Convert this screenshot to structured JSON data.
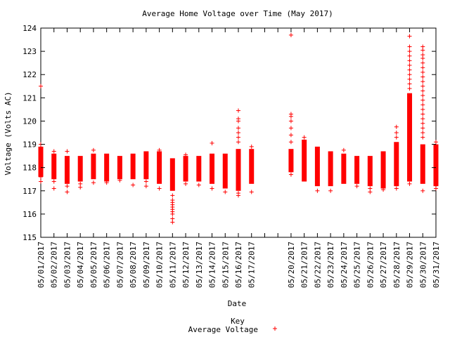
{
  "chart_data": {
    "type": "scatter",
    "title": "Average Home Voltage over Time (May 2017)",
    "xlabel": "Date",
    "ylabel": "Voltage (Volts AC)",
    "ylim": [
      115,
      124
    ],
    "yticks": [
      115,
      116,
      117,
      118,
      119,
      120,
      121,
      122,
      123,
      124
    ],
    "categories": [
      "05/01/2017",
      "05/02/2017",
      "05/03/2017",
      "05/04/2017",
      "05/05/2017",
      "05/06/2017",
      "05/07/2017",
      "05/08/2017",
      "05/09/2017",
      "05/10/2017",
      "05/11/2017",
      "05/12/2017",
      "05/13/2017",
      "05/14/2017",
      "05/15/2017",
      "05/16/2017",
      "05/17/2017",
      "05/18/2017",
      "05/19/2017",
      "05/20/2017",
      "05/21/2017",
      "05/22/2017",
      "05/23/2017",
      "05/24/2017",
      "05/25/2017",
      "05/26/2017",
      "05/27/2017",
      "05/28/2017",
      "05/29/2017",
      "05/30/2017",
      "05/31/2017"
    ],
    "xlim": [
      "05/01/2017",
      "05/31/2017"
    ],
    "grid": false,
    "legend_position": "bottom",
    "legend_title": "Key",
    "series": [
      {
        "name": "Average Voltage",
        "color": "#ff0000",
        "marker": "plus",
        "daily": [
          {
            "date": "05/01/2017",
            "low": 117.6,
            "high": 118.9,
            "outliers": [
              121.5,
              119.0,
              117.4,
              117.6
            ]
          },
          {
            "date": "05/02/2017",
            "low": 117.5,
            "high": 118.6,
            "outliers": [
              118.7,
              117.1,
              117.4
            ]
          },
          {
            "date": "05/03/2017",
            "low": 117.3,
            "high": 118.5,
            "outliers": [
              118.7,
              116.95,
              117.2
            ]
          },
          {
            "date": "05/04/2017",
            "low": 117.4,
            "high": 118.5,
            "outliers": [
              117.15,
              117.3
            ]
          },
          {
            "date": "05/05/2017",
            "low": 117.5,
            "high": 118.6,
            "outliers": [
              118.75,
              117.35
            ]
          },
          {
            "date": "05/06/2017",
            "low": 117.4,
            "high": 118.6,
            "outliers": [
              117.35
            ]
          },
          {
            "date": "05/07/2017",
            "low": 117.5,
            "high": 118.5,
            "outliers": [
              117.45
            ]
          },
          {
            "date": "05/08/2017",
            "low": 117.5,
            "high": 118.6,
            "outliers": [
              117.25
            ]
          },
          {
            "date": "05/09/2017",
            "low": 117.5,
            "high": 118.7,
            "outliers": [
              117.2,
              117.4
            ]
          },
          {
            "date": "05/10/2017",
            "low": 117.3,
            "high": 118.7,
            "outliers": [
              118.75,
              117.1
            ]
          },
          {
            "date": "05/11/2017",
            "low": 117.0,
            "high": 118.4,
            "outliers": [
              116.8,
              116.6,
              116.4,
              116.2,
              116.0,
              115.8,
              115.65,
              116.5,
              116.3,
              116.1
            ]
          },
          {
            "date": "05/12/2017",
            "low": 117.4,
            "high": 118.5,
            "outliers": [
              118.55,
              117.3
            ]
          },
          {
            "date": "05/13/2017",
            "low": 117.4,
            "high": 118.5,
            "outliers": [
              117.25
            ]
          },
          {
            "date": "05/14/2017",
            "low": 117.3,
            "high": 118.6,
            "outliers": [
              119.05,
              117.1
            ]
          },
          {
            "date": "05/15/2017",
            "low": 117.1,
            "high": 118.6,
            "outliers": [
              116.95
            ]
          },
          {
            "date": "05/16/2017",
            "low": 117.0,
            "high": 118.8,
            "outliers": [
              120.45,
              120.1,
              120.0,
              119.7,
              119.5,
              119.3,
              119.1,
              116.8,
              116.9
            ]
          },
          {
            "date": "05/17/2017",
            "low": 117.3,
            "high": 118.8,
            "outliers": [
              118.9,
              117.6,
              116.95
            ]
          },
          {
            "date": "05/20/2017",
            "low": 117.8,
            "high": 118.8,
            "outliers": [
              123.7,
              120.3,
              120.2,
              120.0,
              119.7,
              119.4,
              119.1,
              117.7
            ]
          },
          {
            "date": "05/21/2017",
            "low": 117.4,
            "high": 119.2,
            "outliers": [
              119.3
            ]
          },
          {
            "date": "05/22/2017",
            "low": 117.2,
            "high": 118.9,
            "outliers": [
              117.0
            ]
          },
          {
            "date": "05/23/2017",
            "low": 117.2,
            "high": 118.7,
            "outliers": [
              117.0
            ]
          },
          {
            "date": "05/24/2017",
            "low": 117.3,
            "high": 118.6,
            "outliers": [
              118.75
            ]
          },
          {
            "date": "05/25/2017",
            "low": 117.3,
            "high": 118.5,
            "outliers": [
              117.2
            ]
          },
          {
            "date": "05/26/2017",
            "low": 117.2,
            "high": 118.5,
            "outliers": [
              116.95,
              117.1
            ]
          },
          {
            "date": "05/27/2017",
            "low": 117.1,
            "high": 118.7,
            "outliers": [
              117.05
            ]
          },
          {
            "date": "05/28/2017",
            "low": 117.2,
            "high": 119.1,
            "outliers": [
              119.75,
              119.5,
              119.3,
              117.1
            ]
          },
          {
            "date": "05/29/2017",
            "low": 117.4,
            "high": 121.2,
            "outliers": [
              123.65,
              123.2,
              123.0,
              122.8,
              122.6,
              122.4,
              122.2,
              122.0,
              121.8,
              121.6,
              121.4,
              117.3
            ]
          },
          {
            "date": "05/30/2017",
            "low": 117.3,
            "high": 119.0,
            "outliers": [
              123.2,
              123.05,
              122.85,
              122.7,
              122.5,
              122.3,
              122.1,
              121.9,
              121.7,
              121.5,
              121.3,
              121.1,
              120.9,
              120.7,
              120.5,
              120.3,
              120.1,
              119.9,
              119.7,
              119.5,
              119.3,
              117.0
            ]
          },
          {
            "date": "05/31/2017",
            "low": 117.2,
            "high": 119.0,
            "outliers": [
              119.1,
              117.1
            ]
          }
        ]
      }
    ]
  }
}
